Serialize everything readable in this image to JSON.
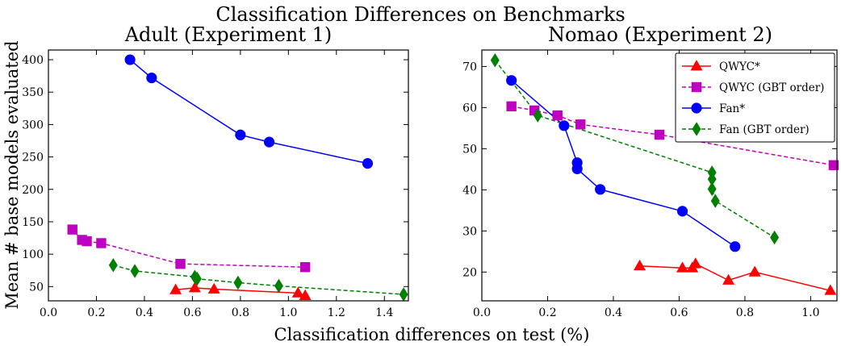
{
  "suptitle": "Classification Differences on Benchmarks",
  "shared_xlabel": "Classification differences on test (%)",
  "shared_ylabel": "Mean # base models evaluated",
  "colors": {
    "qwyc_star": "#ff0000",
    "qwyc_gbt": "#c000c0",
    "fan_star": "#0000ff",
    "fan_gbt": "#008000"
  },
  "chart_data": [
    {
      "type": "line",
      "title": "Adult (Experiment 1)",
      "xlabel": "Classification differences on test (%)",
      "ylabel": "Mean # base models evaluated",
      "xlim": [
        0.0,
        1.5
      ],
      "ylim": [
        28,
        415
      ],
      "xticks": [
        "0.0",
        "0.2",
        "0.4",
        "0.6",
        "0.8",
        "1.0",
        "1.2",
        "1.4"
      ],
      "yticks": [
        "50",
        "100",
        "150",
        "200",
        "250",
        "300",
        "350",
        "400"
      ],
      "legend": null,
      "series": [
        {
          "name": "QWYC*",
          "color": "#ff0000",
          "marker": "triangle",
          "dashed": false,
          "points": [
            [
              0.53,
              45
            ],
            [
              0.61,
              48
            ],
            [
              0.69,
              46
            ],
            [
              1.04,
              40
            ],
            [
              1.07,
              36
            ]
          ]
        },
        {
          "name": "QWYC (GBT order)",
          "color": "#c000c0",
          "marker": "square",
          "dashed": true,
          "points": [
            [
              0.1,
              138
            ],
            [
              0.14,
              122
            ],
            [
              0.16,
              120
            ],
            [
              0.22,
              117
            ],
            [
              0.55,
              85
            ],
            [
              1.07,
              80
            ]
          ]
        },
        {
          "name": "Fan*",
          "color": "#0000ff",
          "marker": "circle",
          "dashed": false,
          "points": [
            [
              0.34,
              400
            ],
            [
              0.43,
              372
            ],
            [
              0.8,
              284
            ],
            [
              0.92,
              273
            ],
            [
              1.33,
              240
            ]
          ]
        },
        {
          "name": "Fan (GBT order)",
          "color": "#008000",
          "marker": "diamond",
          "dashed": true,
          "points": [
            [
              0.27,
              83
            ],
            [
              0.36,
              74
            ],
            [
              0.61,
              65
            ],
            [
              0.62,
              62
            ],
            [
              0.79,
              56
            ],
            [
              0.96,
              51
            ],
            [
              1.48,
              38
            ]
          ]
        }
      ]
    },
    {
      "type": "line",
      "title": "Nomao (Experiment 2)",
      "xlabel": "Classification differences on test (%)",
      "ylabel": "",
      "xlim": [
        0.0,
        1.08
      ],
      "ylim": [
        13,
        74
      ],
      "xticks": [
        "0.0",
        "0.2",
        "0.4",
        "0.6",
        "0.8",
        "1.0"
      ],
      "yticks": [
        "20",
        "30",
        "40",
        "50",
        "60",
        "70"
      ],
      "legend": "top-right",
      "series": [
        {
          "name": "QWYC*",
          "color": "#ff0000",
          "marker": "triangle",
          "dashed": false,
          "points": [
            [
              0.48,
              21.5
            ],
            [
              0.61,
              21
            ],
            [
              0.64,
              21
            ],
            [
              0.65,
              22
            ],
            [
              0.75,
              18
            ],
            [
              0.83,
              20
            ],
            [
              1.06,
              15.5
            ]
          ]
        },
        {
          "name": "QWYC (GBT order)",
          "color": "#c000c0",
          "marker": "square",
          "dashed": true,
          "points": [
            [
              0.09,
              60.3
            ],
            [
              0.16,
              59.3
            ],
            [
              0.23,
              58.1
            ],
            [
              0.3,
              55.9
            ],
            [
              0.54,
              53.4
            ],
            [
              1.07,
              46
            ]
          ]
        },
        {
          "name": "Fan*",
          "color": "#0000ff",
          "marker": "circle",
          "dashed": false,
          "points": [
            [
              0.09,
              66.6
            ],
            [
              0.25,
              55.6
            ],
            [
              0.29,
              46.6
            ],
            [
              0.29,
              45.1
            ],
            [
              0.36,
              40.1
            ],
            [
              0.61,
              34.8
            ],
            [
              0.77,
              26.2
            ]
          ]
        },
        {
          "name": "Fan (GBT order)",
          "color": "#008000",
          "marker": "diamond",
          "dashed": true,
          "points": [
            [
              0.04,
              71.5
            ],
            [
              0.17,
              58.1
            ],
            [
              0.7,
              44.2
            ],
            [
              0.7,
              42.6
            ],
            [
              0.7,
              40.2
            ],
            [
              0.71,
              37.3
            ],
            [
              0.89,
              28.4
            ]
          ]
        }
      ]
    }
  ]
}
